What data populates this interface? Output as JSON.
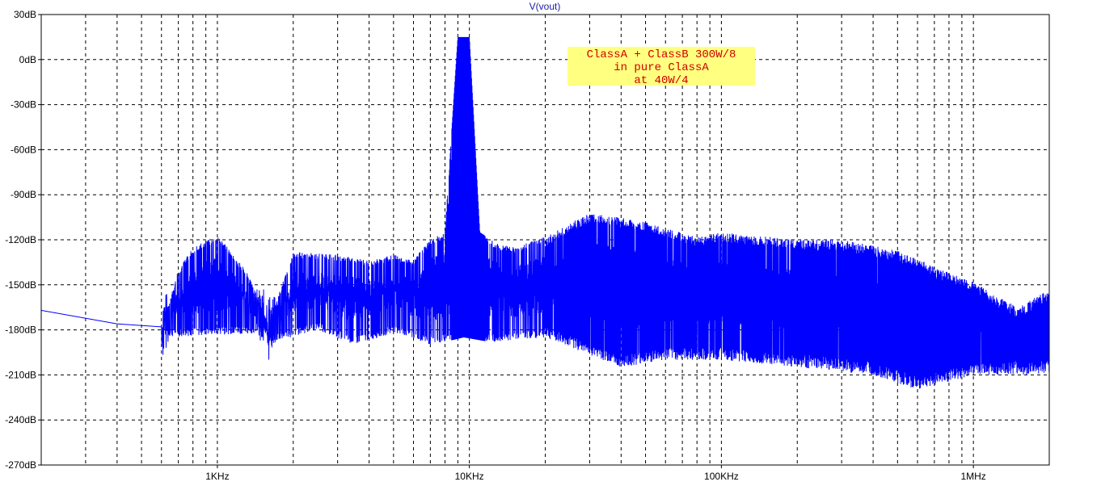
{
  "chart_data": {
    "type": "line",
    "title": "V(vout)",
    "xlabel": "",
    "ylabel": "",
    "x_scale": "log",
    "xlim": [
      200,
      2000000
    ],
    "ylim": [
      -270,
      30
    ],
    "grid": true,
    "grid_style": "dashed",
    "y_ticks": [
      "30dB",
      "0dB",
      "-30dB",
      "-60dB",
      "-90dB",
      "-120dB",
      "-150dB",
      "-180dB",
      "-210dB",
      "-240dB",
      "-270dB"
    ],
    "y_tick_values": [
      30,
      0,
      -30,
      -60,
      -90,
      -120,
      -150,
      -180,
      -210,
      -240,
      -270
    ],
    "x_ticks": [
      "1KHz",
      "10KHz",
      "100KHz",
      "1MHz"
    ],
    "x_tick_values": [
      1000,
      10000,
      100000,
      1000000
    ],
    "annotation": {
      "lines": [
        "ClassA + ClassB 300W/8",
        "in pure ClassA",
        "at 40W/4"
      ],
      "background": "#ffff80",
      "text_color": "#d00000"
    },
    "series": [
      {
        "color": "#0000ff",
        "envelope_points": [
          [
            200,
            -167
          ],
          [
            400,
            -176
          ],
          [
            600,
            -178
          ],
          [
            700,
            -140
          ],
          [
            800,
            -125
          ],
          [
            1000,
            -117
          ],
          [
            1300,
            -140
          ],
          [
            1600,
            -176
          ],
          [
            2000,
            -128
          ],
          [
            3000,
            -130
          ],
          [
            4000,
            -134
          ],
          [
            5000,
            -130
          ],
          [
            6000,
            -133
          ],
          [
            7000,
            -120
          ],
          [
            8000,
            -115
          ],
          [
            9000,
            15
          ],
          [
            10000,
            15
          ],
          [
            11000,
            -115
          ],
          [
            13000,
            -123
          ],
          [
            15000,
            -125
          ],
          [
            20000,
            -118
          ],
          [
            30000,
            -102
          ],
          [
            50000,
            -108
          ],
          [
            80000,
            -118
          ],
          [
            100000,
            -115
          ],
          [
            200000,
            -120
          ],
          [
            300000,
            -120
          ],
          [
            500000,
            -127
          ],
          [
            800000,
            -142
          ],
          [
            1000000,
            -148
          ],
          [
            1500000,
            -165
          ],
          [
            2000000,
            -153
          ]
        ],
        "floor_points": [
          [
            200,
            -167
          ],
          [
            400,
            -183
          ],
          [
            600,
            -185
          ],
          [
            1500,
            -182
          ],
          [
            1700,
            -188
          ],
          [
            2500,
            -180
          ],
          [
            3500,
            -190
          ],
          [
            5000,
            -182
          ],
          [
            7000,
            -190
          ],
          [
            8000,
            -188
          ],
          [
            9500,
            -185
          ],
          [
            12000,
            -188
          ],
          [
            20000,
            -185
          ],
          [
            40000,
            -205
          ],
          [
            60000,
            -200
          ],
          [
            100000,
            -200
          ],
          [
            200000,
            -205
          ],
          [
            400000,
            -210
          ],
          [
            600000,
            -220
          ],
          [
            1000000,
            -210
          ],
          [
            2000000,
            -210
          ]
        ]
      }
    ]
  },
  "colors": {
    "background": "#ffffff",
    "trace": "#0000ff",
    "grid": "#000000",
    "title": "#1a1aa8"
  }
}
